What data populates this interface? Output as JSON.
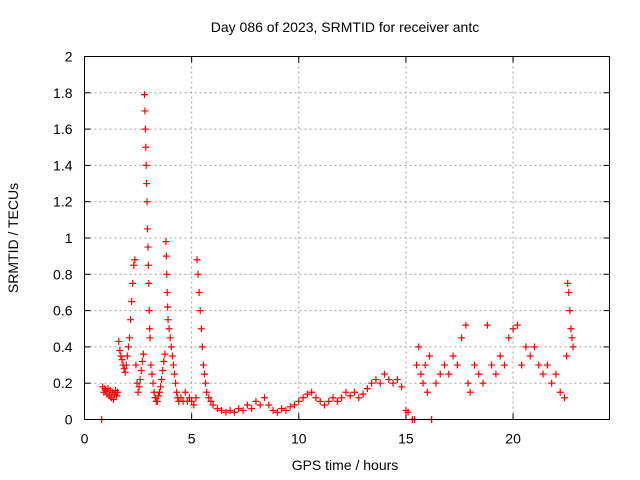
{
  "chart_data": {
    "type": "scatter",
    "title": "Day 086 of 2023, SRMTID for receiver antc",
    "xlabel": "GPS time / hours",
    "ylabel": "SRMTID / TECUs",
    "xlim": [
      0,
      24.5
    ],
    "ylim": [
      0,
      2
    ],
    "xticks": [
      0,
      5,
      10,
      15,
      20
    ],
    "xtick_labels": [
      "0",
      "5",
      "10",
      "15",
      "20"
    ],
    "yticks": [
      0,
      0.2,
      0.4,
      0.6,
      0.8,
      1,
      1.2,
      1.4,
      1.6,
      1.8,
      2
    ],
    "ytick_labels": [
      "0",
      "0.2",
      "0.4",
      "0.6",
      "0.8",
      "1",
      "1.2",
      "1.4",
      "1.6",
      "1.8",
      "2"
    ],
    "grid": true,
    "marker": "plus",
    "color": "#ff0000",
    "series": [
      {
        "name": "antc",
        "points": [
          [
            0.8,
            0.0
          ],
          [
            0.85,
            0.18
          ],
          [
            0.9,
            0.15
          ],
          [
            0.95,
            0.17
          ],
          [
            1.0,
            0.16
          ],
          [
            1.05,
            0.14
          ],
          [
            1.1,
            0.17
          ],
          [
            1.15,
            0.13
          ],
          [
            1.2,
            0.16
          ],
          [
            1.25,
            0.12
          ],
          [
            1.3,
            0.15
          ],
          [
            1.35,
            0.11
          ],
          [
            1.4,
            0.14
          ],
          [
            1.45,
            0.16
          ],
          [
            1.5,
            0.13
          ],
          [
            1.55,
            0.15
          ],
          [
            1.6,
            0.43
          ],
          [
            1.65,
            0.38
          ],
          [
            1.7,
            0.35
          ],
          [
            1.75,
            0.33
          ],
          [
            1.8,
            0.3
          ],
          [
            1.85,
            0.28
          ],
          [
            1.9,
            0.26
          ],
          [
            1.95,
            0.3
          ],
          [
            2.0,
            0.35
          ],
          [
            2.05,
            0.4
          ],
          [
            2.1,
            0.45
          ],
          [
            2.15,
            0.55
          ],
          [
            2.2,
            0.65
          ],
          [
            2.25,
            0.75
          ],
          [
            2.3,
            0.85
          ],
          [
            2.35,
            0.88
          ],
          [
            2.4,
            0.3
          ],
          [
            2.45,
            0.2
          ],
          [
            2.5,
            0.15
          ],
          [
            2.55,
            0.18
          ],
          [
            2.6,
            0.22
          ],
          [
            2.65,
            0.27
          ],
          [
            2.7,
            0.32
          ],
          [
            2.75,
            0.36
          ],
          [
            2.8,
            1.79
          ],
          [
            2.82,
            1.7
          ],
          [
            2.84,
            1.6
          ],
          [
            2.86,
            1.5
          ],
          [
            2.88,
            1.4
          ],
          [
            2.9,
            1.3
          ],
          [
            2.92,
            1.2
          ],
          [
            2.94,
            1.05
          ],
          [
            2.96,
            0.95
          ],
          [
            2.98,
            0.85
          ],
          [
            3.0,
            0.75
          ],
          [
            3.02,
            0.6
          ],
          [
            3.04,
            0.5
          ],
          [
            3.06,
            0.45
          ],
          [
            3.1,
            0.3
          ],
          [
            3.15,
            0.25
          ],
          [
            3.2,
            0.2
          ],
          [
            3.25,
            0.15
          ],
          [
            3.3,
            0.12
          ],
          [
            3.35,
            0.1
          ],
          [
            3.4,
            0.1
          ],
          [
            3.45,
            0.13
          ],
          [
            3.5,
            0.15
          ],
          [
            3.55,
            0.18
          ],
          [
            3.6,
            0.22
          ],
          [
            3.65,
            0.27
          ],
          [
            3.7,
            0.32
          ],
          [
            3.75,
            0.36
          ],
          [
            3.8,
            0.98
          ],
          [
            3.82,
            0.9
          ],
          [
            3.84,
            0.8
          ],
          [
            3.86,
            0.7
          ],
          [
            3.88,
            0.62
          ],
          [
            3.9,
            0.55
          ],
          [
            3.95,
            0.5
          ],
          [
            4.0,
            0.45
          ],
          [
            4.05,
            0.4
          ],
          [
            4.1,
            0.35
          ],
          [
            4.15,
            0.3
          ],
          [
            4.2,
            0.25
          ],
          [
            4.25,
            0.2
          ],
          [
            4.3,
            0.15
          ],
          [
            4.35,
            0.12
          ],
          [
            4.4,
            0.1
          ],
          [
            4.5,
            0.12
          ],
          [
            4.6,
            0.1
          ],
          [
            4.7,
            0.15
          ],
          [
            4.8,
            0.1
          ],
          [
            4.9,
            0.12
          ],
          [
            5.0,
            0.1
          ],
          [
            5.1,
            0.08
          ],
          [
            5.2,
            0.12
          ],
          [
            5.25,
            0.88
          ],
          [
            5.3,
            0.8
          ],
          [
            5.35,
            0.7
          ],
          [
            5.4,
            0.6
          ],
          [
            5.45,
            0.5
          ],
          [
            5.5,
            0.4
          ],
          [
            5.55,
            0.3
          ],
          [
            5.6,
            0.25
          ],
          [
            5.65,
            0.2
          ],
          [
            5.7,
            0.15
          ],
          [
            5.8,
            0.12
          ],
          [
            5.9,
            0.1
          ],
          [
            6.0,
            0.08
          ],
          [
            6.2,
            0.06
          ],
          [
            6.4,
            0.05
          ],
          [
            6.6,
            0.04
          ],
          [
            6.8,
            0.05
          ],
          [
            7.0,
            0.04
          ],
          [
            7.2,
            0.06
          ],
          [
            7.4,
            0.05
          ],
          [
            7.6,
            0.08
          ],
          [
            7.8,
            0.06
          ],
          [
            8.0,
            0.1
          ],
          [
            8.2,
            0.08
          ],
          [
            8.4,
            0.12
          ],
          [
            8.6,
            0.08
          ],
          [
            8.8,
            0.05
          ],
          [
            9.0,
            0.04
          ],
          [
            9.2,
            0.06
          ],
          [
            9.4,
            0.05
          ],
          [
            9.6,
            0.07
          ],
          [
            9.8,
            0.08
          ],
          [
            10.0,
            0.1
          ],
          [
            10.2,
            0.12
          ],
          [
            10.4,
            0.14
          ],
          [
            10.6,
            0.15
          ],
          [
            10.8,
            0.12
          ],
          [
            11.0,
            0.1
          ],
          [
            11.2,
            0.08
          ],
          [
            11.4,
            0.1
          ],
          [
            11.6,
            0.12
          ],
          [
            11.8,
            0.1
          ],
          [
            12.0,
            0.12
          ],
          [
            12.2,
            0.15
          ],
          [
            12.4,
            0.13
          ],
          [
            12.6,
            0.15
          ],
          [
            12.8,
            0.12
          ],
          [
            13.0,
            0.14
          ],
          [
            13.2,
            0.17
          ],
          [
            13.4,
            0.2
          ],
          [
            13.6,
            0.22
          ],
          [
            13.8,
            0.2
          ],
          [
            14.0,
            0.25
          ],
          [
            14.2,
            0.22
          ],
          [
            14.4,
            0.2
          ],
          [
            14.6,
            0.22
          ],
          [
            14.8,
            0.18
          ],
          [
            15.0,
            0.05
          ],
          [
            15.1,
            0.04
          ],
          [
            15.3,
            0.0
          ],
          [
            15.4,
            0.0
          ],
          [
            15.5,
            0.3
          ],
          [
            15.6,
            0.4
          ],
          [
            15.7,
            0.25
          ],
          [
            15.8,
            0.2
          ],
          [
            15.9,
            0.3
          ],
          [
            16.0,
            0.15
          ],
          [
            16.1,
            0.35
          ],
          [
            16.2,
            0.0
          ],
          [
            16.4,
            0.2
          ],
          [
            16.6,
            0.25
          ],
          [
            16.8,
            0.3
          ],
          [
            17.0,
            0.25
          ],
          [
            17.2,
            0.35
          ],
          [
            17.4,
            0.3
          ],
          [
            17.6,
            0.45
          ],
          [
            17.8,
            0.52
          ],
          [
            17.9,
            0.2
          ],
          [
            18.0,
            0.15
          ],
          [
            18.2,
            0.3
          ],
          [
            18.4,
            0.25
          ],
          [
            18.6,
            0.2
          ],
          [
            18.8,
            0.52
          ],
          [
            19.0,
            0.3
          ],
          [
            19.2,
            0.25
          ],
          [
            19.4,
            0.35
          ],
          [
            19.6,
            0.3
          ],
          [
            19.8,
            0.45
          ],
          [
            20.0,
            0.5
          ],
          [
            20.2,
            0.52
          ],
          [
            20.4,
            0.3
          ],
          [
            20.6,
            0.4
          ],
          [
            20.8,
            0.35
          ],
          [
            21.0,
            0.4
          ],
          [
            21.2,
            0.3
          ],
          [
            21.4,
            0.25
          ],
          [
            21.6,
            0.3
          ],
          [
            21.8,
            0.2
          ],
          [
            22.0,
            0.25
          ],
          [
            22.2,
            0.15
          ],
          [
            22.4,
            0.12
          ],
          [
            22.5,
            0.35
          ],
          [
            22.55,
            0.75
          ],
          [
            22.6,
            0.7
          ],
          [
            22.65,
            0.6
          ],
          [
            22.7,
            0.5
          ],
          [
            22.75,
            0.45
          ],
          [
            22.8,
            0.4
          ]
        ]
      }
    ]
  }
}
